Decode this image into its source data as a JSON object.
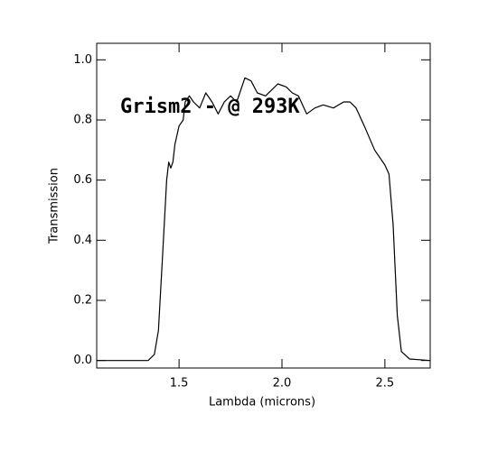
{
  "chart_data": {
    "type": "line",
    "annotation": "Grism2 - @ 293K",
    "x_label": "Lambda (microns)",
    "y_label": "Transmission",
    "x": [
      1.1,
      1.35,
      1.38,
      1.4,
      1.42,
      1.44,
      1.45,
      1.46,
      1.47,
      1.48,
      1.5,
      1.52,
      1.53,
      1.55,
      1.57,
      1.6,
      1.63,
      1.66,
      1.69,
      1.72,
      1.75,
      1.78,
      1.82,
      1.85,
      1.88,
      1.92,
      1.95,
      1.98,
      2.02,
      2.05,
      2.08,
      2.12,
      2.16,
      2.2,
      2.25,
      2.3,
      2.33,
      2.36,
      2.4,
      2.45,
      2.5,
      2.52,
      2.54,
      2.56,
      2.58,
      2.62,
      2.72
    ],
    "values": [
      0,
      0,
      0.02,
      0.1,
      0.35,
      0.6,
      0.66,
      0.64,
      0.66,
      0.72,
      0.78,
      0.8,
      0.86,
      0.88,
      0.86,
      0.84,
      0.89,
      0.86,
      0.82,
      0.86,
      0.88,
      0.86,
      0.94,
      0.93,
      0.89,
      0.88,
      0.9,
      0.92,
      0.91,
      0.89,
      0.88,
      0.82,
      0.84,
      0.85,
      0.84,
      0.86,
      0.86,
      0.84,
      0.78,
      0.7,
      0.65,
      0.62,
      0.45,
      0.15,
      0.03,
      0.005,
      0
    ],
    "color": "#000000",
    "xlim": [
      1.1,
      2.72
    ],
    "ylim": [
      -0.025,
      1.055
    ],
    "xticks": [
      1.5,
      {
        "value": 2.0,
        "label": "2.0"
      },
      2.5
    ],
    "yticks": [
      {
        "value": 0.0,
        "label": "0.0"
      },
      0.2,
      0.4,
      0.6,
      0.8,
      {
        "value": 1.0,
        "label": "1.0"
      }
    ]
  }
}
